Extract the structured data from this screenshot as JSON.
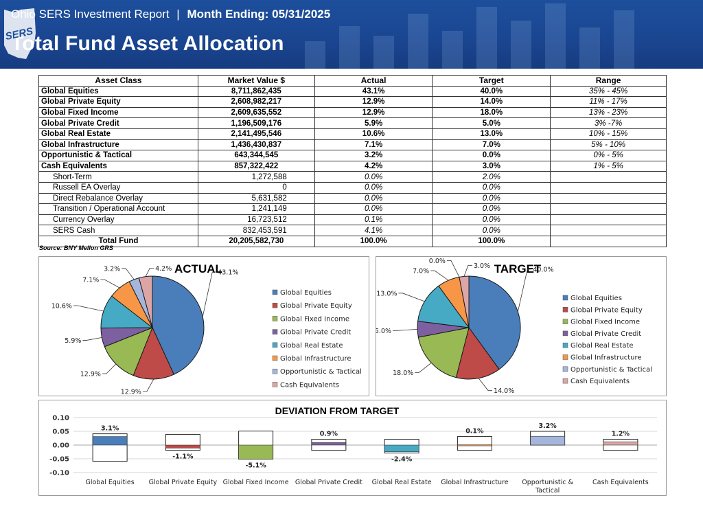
{
  "header": {
    "subtitle_left": "Ohio SERS Investment Report",
    "subtitle_sep": "|",
    "subtitle_right": "Month Ending: 05/31/2025",
    "title": "Total Fund Asset Allocation",
    "logo_text": "SERS"
  },
  "colors": {
    "Global Equities": "#4a7ebb",
    "Global Private Equity": "#be4b48",
    "Global Fixed Income": "#98b954",
    "Global Private Credit": "#7d60a0",
    "Global Real Estate": "#46aac5",
    "Global Infrastructure": "#f69646",
    "Opportunistic & Tactical": "#a5b6dd",
    "Cash Equivalents": "#dca6a6"
  },
  "table": {
    "headers": [
      "Asset Class",
      "Market Value  $",
      "Actual",
      "Target",
      "Range"
    ],
    "rows": [
      {
        "type": "main",
        "asset": "Global Equities",
        "mv": "8,711,862,435",
        "actual": "43.1%",
        "target": "40.0%",
        "range": "35% - 45%"
      },
      {
        "type": "main",
        "asset": "Global Private Equity",
        "mv": "2,608,982,217",
        "actual": "12.9%",
        "target": "14.0%",
        "range": "11% - 17%"
      },
      {
        "type": "main",
        "asset": "Global Fixed Income",
        "mv": "2,609,635,552",
        "actual": "12.9%",
        "target": "18.0%",
        "range": "13% - 23%"
      },
      {
        "type": "main",
        "asset": "Global Private Credit",
        "mv": "1,196,509,176",
        "actual": "5.9%",
        "target": "5.0%",
        "range": "3% -7%"
      },
      {
        "type": "main",
        "asset": "Global Real Estate",
        "mv": "2,141,495,546",
        "actual": "10.6%",
        "target": "13.0%",
        "range": "10% - 15%"
      },
      {
        "type": "main",
        "asset": "Global Infrastructure",
        "mv": "1,436,430,837",
        "actual": "7.1%",
        "target": "7.0%",
        "range": "5% - 10%"
      },
      {
        "type": "main",
        "asset": "Opportunistic & Tactical",
        "mv": "643,344,545",
        "actual": "3.2%",
        "target": "0.0%",
        "range": "0% - 5%"
      },
      {
        "type": "main",
        "asset": "Cash Equivalents",
        "mv": "857,322,422",
        "actual": "4.2%",
        "target": "3.0%",
        "range": "1% - 5%"
      },
      {
        "type": "sub",
        "asset": "Short-Term",
        "mv": "1,272,588",
        "actual": "0.0%",
        "target": "2.0%",
        "range": ""
      },
      {
        "type": "sub",
        "asset": "Russell EA Overlay",
        "mv": "0",
        "actual": "0.0%",
        "target": "0.0%",
        "range": ""
      },
      {
        "type": "sub",
        "asset": "Direct Rebalance Overlay",
        "mv": "5,631,582",
        "actual": "0.0%",
        "target": "0.0%",
        "range": ""
      },
      {
        "type": "sub",
        "asset": "Transition / Operational Account",
        "mv": "1,241,149",
        "actual": "0.0%",
        "target": "0.0%",
        "range": ""
      },
      {
        "type": "sub",
        "asset": "Currency Overlay",
        "mv": "16,723,512",
        "actual": "0.1%",
        "target": "0.0%",
        "range": ""
      },
      {
        "type": "sub",
        "asset": "SERS Cash",
        "mv": "832,453,591",
        "actual": "4.1%",
        "target": "0.0%",
        "range": ""
      },
      {
        "type": "total",
        "asset": "Total Fund",
        "mv": "20,205,582,730",
        "actual": "100.0%",
        "target": "100.0%",
        "range": ""
      }
    ],
    "source": "Source: BNY Mellon GRS"
  },
  "chart_data": [
    {
      "type": "pie",
      "title": "ACTUAL",
      "categories": [
        "Global Equities",
        "Global Private Equity",
        "Global Fixed Income",
        "Global Private Credit",
        "Global Real Estate",
        "Global Infrastructure",
        "Opportunistic & Tactical",
        "Cash Equivalents"
      ],
      "values": [
        43.1,
        12.9,
        12.9,
        5.9,
        10.6,
        7.1,
        3.2,
        4.2
      ],
      "labels": [
        "43.1%",
        "12.9%",
        "12.9%",
        "5.9%",
        "10.6%",
        "7.1%",
        "3.2%",
        "4.2%"
      ],
      "legend": "right"
    },
    {
      "type": "pie",
      "title": "TARGET",
      "categories": [
        "Global Equities",
        "Global Private Equity",
        "Global Fixed Income",
        "Global Private Credit",
        "Global Real Estate",
        "Global Infrastructure",
        "Opportunistic & Tactical",
        "Cash Equivalents"
      ],
      "values": [
        40.0,
        14.0,
        18.0,
        5.0,
        13.0,
        7.0,
        0.0,
        3.0
      ],
      "labels": [
        "40.0%",
        "14.0%",
        "18.0%",
        "5.0%",
        "13.0%",
        "7.0%",
        "0.0%",
        "3.0%"
      ],
      "legend": "right"
    },
    {
      "type": "bar",
      "title": "DEVIATION FROM TARGET",
      "categories": [
        "Global Equities",
        "Global Private Equity",
        "Global Fixed Income",
        "Global Private Credit",
        "Global Real Estate",
        "Global Infrastructure",
        "Opportunistic & Tactical",
        "Cash Equivalents"
      ],
      "category_lines": [
        [
          "Global Equities"
        ],
        [
          "Global Private Equity"
        ],
        [
          "Global Fixed Income"
        ],
        [
          "Global Private Credit"
        ],
        [
          "Global Real Estate"
        ],
        [
          "Global Infrastructure"
        ],
        [
          "Opportunistic &",
          "Tactical"
        ],
        [
          "Cash Equivalents"
        ]
      ],
      "values": [
        0.031,
        -0.011,
        -0.051,
        0.009,
        -0.024,
        0.001,
        0.032,
        0.012
      ],
      "labels": [
        "3.1%",
        "-1.1%",
        "-5.1%",
        "0.9%",
        "-2.4%",
        "0.1%",
        "3.2%",
        "1.2%"
      ],
      "range_low": [
        -0.059,
        -0.019,
        -0.051,
        -0.019,
        -0.029,
        -0.019,
        0.0,
        -0.019
      ],
      "range_high": [
        0.041,
        0.039,
        0.051,
        0.021,
        0.021,
        0.031,
        0.05,
        0.021
      ],
      "ylim": [
        -0.1,
        0.1
      ],
      "yticks": [
        "0.10",
        "0.05",
        "0.00",
        "-0.05",
        "-0.10"
      ],
      "ytick_values": [
        0.1,
        0.05,
        0.0,
        -0.05,
        -0.1
      ],
      "grid": true
    }
  ]
}
